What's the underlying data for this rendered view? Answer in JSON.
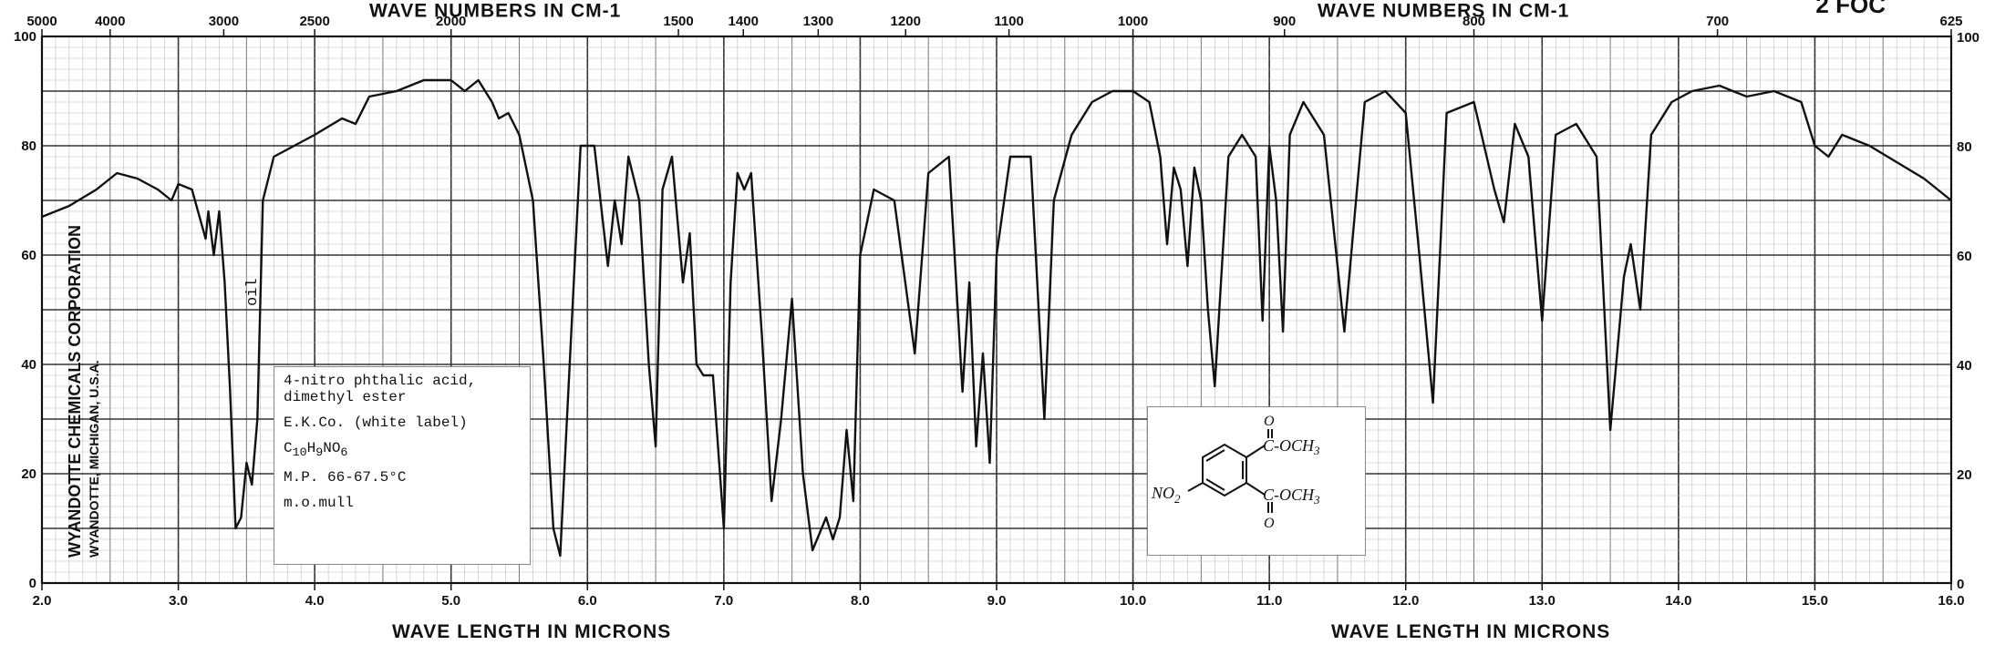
{
  "chart_data": {
    "type": "line",
    "top_axis_label_left": "WAVE NUMBERS IN CM-1",
    "top_axis_label_right": "WAVE NUMBERS IN CM-1",
    "bottom_axis_label_left": "WAVE LENGTH IN MICRONS",
    "bottom_axis_label_right": "WAVE LENGTH IN MICRONS",
    "sheet_id": "2 FOC",
    "xlim": [
      2.0,
      16.0
    ],
    "ylim": [
      0,
      100
    ],
    "x_ticks": [
      "2.0",
      "3.0",
      "4.0",
      "5.0",
      "6.0",
      "7.0",
      "8.0",
      "9.0",
      "10.0",
      "11.0",
      "12.0",
      "13.0",
      "14.0",
      "15.0",
      "16.0"
    ],
    "y_ticks_left": [
      "0",
      "20",
      "40",
      "60",
      "80",
      "100"
    ],
    "y_ticks_right": [
      "0",
      "20",
      "40",
      "60",
      "80",
      "100"
    ],
    "top_ticks": [
      {
        "label": "5000",
        "micron": 2.0
      },
      {
        "label": "4000",
        "micron": 2.5
      },
      {
        "label": "3000",
        "micron": 3.333
      },
      {
        "label": "2500",
        "micron": 4.0
      },
      {
        "label": "2000",
        "micron": 5.0
      },
      {
        "label": "1500",
        "micron": 6.667
      },
      {
        "label": "1400",
        "micron": 7.143
      },
      {
        "label": "1300",
        "micron": 7.692
      },
      {
        "label": "1200",
        "micron": 8.333
      },
      {
        "label": "1100",
        "micron": 9.091
      },
      {
        "label": "1000",
        "micron": 10.0
      },
      {
        "label": "900",
        "micron": 11.111
      },
      {
        "label": "800",
        "micron": 12.5
      },
      {
        "label": "700",
        "micron": 14.286
      },
      {
        "label": "625",
        "micron": 16.0
      }
    ],
    "series": [
      {
        "color": "#111111",
        "x": [
          2.0,
          2.2,
          2.4,
          2.55,
          2.7,
          2.85,
          2.95,
          3.0,
          3.1,
          3.2,
          3.22,
          3.26,
          3.3,
          3.34,
          3.38,
          3.42,
          3.46,
          3.5,
          3.54,
          3.58,
          3.62,
          3.7,
          3.85,
          4.0,
          4.2,
          4.3,
          4.4,
          4.6,
          4.8,
          5.0,
          5.1,
          5.2,
          5.3,
          5.35,
          5.42,
          5.5,
          5.6,
          5.68,
          5.75,
          5.8,
          5.85,
          5.95,
          6.05,
          6.15,
          6.2,
          6.25,
          6.3,
          6.38,
          6.45,
          6.5,
          6.55,
          6.62,
          6.7,
          6.75,
          6.8,
          6.85,
          6.92,
          7.0,
          7.05,
          7.1,
          7.15,
          7.2,
          7.28,
          7.35,
          7.42,
          7.5,
          7.58,
          7.65,
          7.7,
          7.75,
          7.8,
          7.85,
          7.9,
          7.95,
          8.0,
          8.1,
          8.25,
          8.4,
          8.5,
          8.65,
          8.75,
          8.8,
          8.85,
          8.9,
          8.95,
          9.0,
          9.1,
          9.25,
          9.35,
          9.42,
          9.55,
          9.7,
          9.85,
          10.0,
          10.12,
          10.2,
          10.25,
          10.3,
          10.35,
          10.4,
          10.45,
          10.5,
          10.55,
          10.6,
          10.7,
          10.8,
          10.9,
          10.95,
          11.0,
          11.05,
          11.1,
          11.15,
          11.25,
          11.4,
          11.55,
          11.7,
          11.85,
          12.0,
          12.1,
          12.2,
          12.3,
          12.5,
          12.65,
          12.72,
          12.8,
          12.9,
          13.0,
          13.1,
          13.25,
          13.4,
          13.5,
          13.6,
          13.65,
          13.72,
          13.8,
          13.95,
          14.1,
          14.3,
          14.5,
          14.7,
          14.9,
          15.0,
          15.1,
          15.2,
          15.4,
          15.6,
          15.8,
          15.95,
          16.0
        ],
        "y": [
          67,
          69,
          72,
          75,
          74,
          72,
          70,
          73,
          72,
          63,
          68,
          60,
          68,
          55,
          35,
          10,
          12,
          22,
          18,
          30,
          70,
          78,
          80,
          82,
          85,
          84,
          89,
          90,
          92,
          92,
          90,
          92,
          88,
          85,
          86,
          82,
          70,
          40,
          10,
          5,
          30,
          80,
          80,
          58,
          70,
          62,
          78,
          70,
          40,
          25,
          72,
          78,
          55,
          64,
          40,
          38,
          38,
          10,
          55,
          75,
          72,
          75,
          45,
          15,
          30,
          52,
          20,
          6,
          9,
          12,
          8,
          12,
          28,
          15,
          60,
          72,
          70,
          42,
          75,
          78,
          35,
          55,
          25,
          42,
          22,
          60,
          78,
          78,
          30,
          70,
          82,
          88,
          90,
          90,
          88,
          78,
          62,
          76,
          72,
          58,
          76,
          70,
          50,
          36,
          78,
          82,
          78,
          48,
          80,
          70,
          46,
          82,
          88,
          82,
          46,
          88,
          90,
          86,
          60,
          33,
          86,
          88,
          72,
          66,
          84,
          78,
          48,
          82,
          84,
          78,
          28,
          56,
          62,
          50,
          82,
          88,
          90,
          91,
          89,
          90,
          88,
          80,
          78,
          82,
          80,
          77,
          74,
          71,
          70
        ]
      }
    ]
  },
  "sample_label": {
    "line1": "4-nitro phthalic acid,",
    "line2": "dimethyl ester",
    "line3": "E.K.Co. (white label)",
    "formula_main": "C",
    "formula_sub1": "10",
    "formula_mid1": "H",
    "formula_sub2": "9",
    "formula_mid2": "NO",
    "formula_sub3": "6",
    "mp": "M.P. 66-67.5°C",
    "mull": "m.o.mull"
  },
  "annotation_oil": "oil",
  "publisher_line1": "WYANDOTTE CHEMICALS CORPORATION",
  "publisher_line2": "WYANDOTTE, MICHIGAN, U.S.A.",
  "structure": {
    "no2": "NO",
    "no2_sub": "2",
    "ester_top": "C-OCH",
    "ester_top_sub": "3",
    "ester_bottom": "C-OCH",
    "ester_bottom_sub": "3",
    "carbonyl": "O"
  }
}
